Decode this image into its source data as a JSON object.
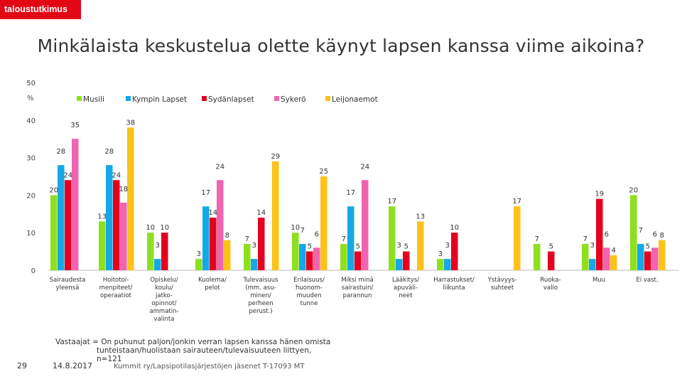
{
  "brand": "taloustutkimus",
  "page_number": "29",
  "date": "14.8.2017",
  "respondents": {
    "line1": "Vastaajat =  On puhunut paljon/jonkin verran lapsen kanssa hänen omista",
    "line2": "tunteistaan/huolistaan sairauteen/tulevaisuuteen liittyen,",
    "line3": "n=121"
  },
  "source": "Kummit ry/Lapsipotilasjärjestöjen jäsenet T-17093 MT",
  "chart_data": {
    "type": "bar",
    "title": "Minkälaista keskustelua olette käynyt lapsen kanssa viime aikoina?",
    "ylabel": "%",
    "ylim": [
      0,
      50
    ],
    "yticks": [
      0,
      10,
      20,
      30,
      40,
      50
    ],
    "categories": [
      [
        "Sairaudesta",
        "yleensä"
      ],
      [
        "Hoitotoi-",
        "menpiteet/",
        "operaatiot"
      ],
      [
        "Opiskelu/",
        "koulu/",
        "jatko-",
        "opinnot/",
        "ammatin-",
        "valinta"
      ],
      [
        "Kuolema/",
        "pelot"
      ],
      [
        "Tulevaisuus",
        "(mm. asu-",
        "minen/",
        "perheen",
        "perust.)"
      ],
      [
        "Erilaisuus/",
        "huonom-",
        "muuden",
        "tunne"
      ],
      [
        "Miksi minä",
        "sairastuin/",
        "parannun"
      ],
      [
        "Lääkitys/",
        "apuväli-",
        "neet"
      ],
      [
        "Harrastukset/",
        "liikunta"
      ],
      [
        "Ystävyys-",
        "suhteet"
      ],
      [
        "Ruoka-",
        "valio"
      ],
      [
        "Muu"
      ],
      [
        "Ei vast."
      ]
    ],
    "series": [
      {
        "name": "Musili",
        "color": "#8ee01f",
        "values": [
          20,
          13,
          10,
          3,
          7,
          10,
          7,
          17,
          3,
          null,
          7,
          7,
          20
        ]
      },
      {
        "name": "Kympin Lapset",
        "color": "#14a9e6",
        "values": [
          28,
          28,
          3,
          17,
          3,
          7,
          17,
          3,
          3,
          null,
          null,
          3,
          7
        ]
      },
      {
        "name": "Sydänlapset",
        "color": "#e4001e",
        "values": [
          24,
          24,
          10,
          14,
          14,
          5,
          5,
          5,
          10,
          null,
          5,
          19,
          5
        ]
      },
      {
        "name": "Sykerö",
        "color": "#f064b0",
        "values": [
          35,
          18,
          null,
          24,
          null,
          6,
          24,
          null,
          null,
          null,
          null,
          6,
          6
        ]
      },
      {
        "name": "Leijonaemot",
        "color": "#fcc21a",
        "values": [
          null,
          38,
          null,
          8,
          29,
          25,
          null,
          13,
          null,
          17,
          null,
          4,
          8
        ]
      }
    ],
    "data_labels": [
      [
        "20",
        "28",
        "24",
        "35",
        ""
      ],
      [
        "13",
        "28",
        "24",
        "18",
        "38"
      ],
      [
        "10",
        "3",
        "10",
        "",
        ""
      ],
      [
        "3",
        "17",
        "14",
        "24",
        "8"
      ],
      [
        "7",
        "3",
        "14",
        "",
        "29"
      ],
      [
        "10",
        "7",
        "5",
        "6",
        "25"
      ],
      [
        "7",
        "17",
        "5",
        "24",
        ""
      ],
      [
        "17",
        "3",
        "5",
        "",
        "13"
      ],
      [
        "3",
        "3",
        "10",
        "",
        ""
      ],
      [
        "",
        "",
        "",
        "",
        "17"
      ],
      [
        "7",
        "",
        "5",
        "",
        ""
      ],
      [
        "7",
        "3",
        "19",
        "6",
        "4"
      ],
      [
        "20",
        "7",
        "5",
        "6",
        "8"
      ]
    ],
    "legend_position": "top",
    "grid": false
  }
}
